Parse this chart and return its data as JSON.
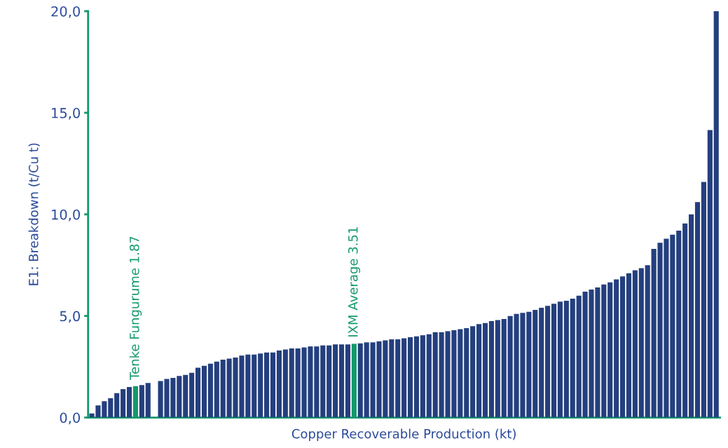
{
  "chart_data": {
    "type": "bar",
    "xlabel": "Copper Recoverable Production (kt)",
    "ylabel": "E1: Breakdown (t/Cu t)",
    "categories": [
      null,
      null,
      null,
      null,
      null,
      null,
      null,
      null,
      null,
      null,
      null,
      null,
      null,
      null,
      null,
      null,
      null,
      null,
      null,
      null,
      null,
      null,
      null,
      null,
      null,
      null,
      null,
      null,
      null,
      null,
      null,
      null,
      null,
      null,
      null,
      null,
      null,
      null,
      null,
      null,
      null,
      null,
      null,
      null,
      null,
      null,
      null,
      null,
      null,
      null,
      null,
      null,
      null,
      null,
      null,
      null,
      null,
      null,
      null,
      null,
      null,
      null,
      null,
      null,
      null,
      null,
      null,
      null,
      null,
      null,
      null,
      null,
      null,
      null,
      null,
      null,
      null,
      null,
      null,
      null,
      null,
      null,
      null,
      null,
      null,
      null,
      null,
      null,
      null,
      null,
      null,
      null,
      null,
      null,
      null,
      null,
      null,
      null,
      null,
      null,
      null
    ],
    "values": [
      0.2,
      0.6,
      0.8,
      0.95,
      1.2,
      1.4,
      1.5,
      1.55,
      1.6,
      1.7,
      null,
      1.8,
      1.9,
      1.95,
      2.05,
      2.1,
      2.2,
      2.45,
      2.55,
      2.65,
      2.75,
      2.85,
      2.9,
      2.95,
      3.05,
      3.1,
      3.1,
      3.15,
      3.2,
      3.2,
      3.3,
      3.35,
      3.4,
      3.4,
      3.45,
      3.5,
      3.5,
      3.55,
      3.55,
      3.6,
      3.6,
      3.6,
      3.63,
      3.65,
      3.7,
      3.7,
      3.75,
      3.8,
      3.85,
      3.85,
      3.9,
      3.95,
      4.0,
      4.05,
      4.1,
      4.2,
      4.2,
      4.25,
      4.3,
      4.35,
      4.4,
      4.5,
      4.6,
      4.65,
      4.75,
      4.8,
      4.85,
      5.0,
      5.1,
      5.15,
      5.2,
      5.3,
      5.4,
      5.5,
      5.6,
      5.7,
      5.75,
      5.85,
      6.0,
      6.2,
      6.3,
      6.4,
      6.55,
      6.65,
      6.8,
      6.95,
      7.1,
      7.25,
      7.35,
      7.5,
      8.3,
      8.6,
      8.8,
      9.0,
      9.2,
      9.55,
      10.0,
      10.6,
      11.6,
      14.15,
      20.0
    ],
    "color": "#243f7e",
    "colors": [
      "#243f7e",
      "#243f7e",
      "#243f7e",
      "#243f7e",
      "#243f7e",
      "#243f7e",
      "#243f7e",
      "#13996b",
      "#243f7e",
      "#243f7e",
      "#243f7e",
      "#243f7e",
      "#243f7e",
      "#243f7e",
      "#243f7e",
      "#243f7e",
      "#243f7e",
      "#243f7e",
      "#243f7e",
      "#243f7e",
      "#243f7e",
      "#243f7e",
      "#243f7e",
      "#243f7e",
      "#243f7e",
      "#243f7e",
      "#243f7e",
      "#243f7e",
      "#243f7e",
      "#243f7e",
      "#243f7e",
      "#243f7e",
      "#243f7e",
      "#243f7e",
      "#243f7e",
      "#243f7e",
      "#243f7e",
      "#243f7e",
      "#243f7e",
      "#243f7e",
      "#243f7e",
      "#243f7e",
      "#13996b",
      "#243f7e",
      "#243f7e",
      "#243f7e",
      "#243f7e",
      "#243f7e",
      "#243f7e",
      "#243f7e",
      "#243f7e",
      "#243f7e",
      "#243f7e",
      "#243f7e",
      "#243f7e",
      "#243f7e",
      "#243f7e",
      "#243f7e",
      "#243f7e",
      "#243f7e",
      "#243f7e",
      "#243f7e",
      "#243f7e",
      "#243f7e",
      "#243f7e",
      "#243f7e",
      "#243f7e",
      "#243f7e",
      "#243f7e",
      "#243f7e",
      "#243f7e",
      "#243f7e",
      "#243f7e",
      "#243f7e",
      "#243f7e",
      "#243f7e",
      "#243f7e",
      "#243f7e",
      "#243f7e",
      "#243f7e",
      "#243f7e",
      "#243f7e",
      "#243f7e",
      "#243f7e",
      "#243f7e",
      "#243f7e",
      "#243f7e",
      "#243f7e",
      "#243f7e",
      "#243f7e",
      "#243f7e",
      "#243f7e",
      "#243f7e",
      "#243f7e",
      "#243f7e",
      "#243f7e",
      "#243f7e",
      "#243f7e",
      "#243f7e",
      "#243f7e",
      "#243f7e"
    ],
    "annotations": [
      {
        "text": "Tenke Fungurume 1.87",
        "y": 1.55
      },
      {
        "text": "IXM Average 3.51",
        "y": 3.63
      }
    ],
    "ylim": [
      0,
      20
    ],
    "yticks": [
      {
        "value": 0,
        "label": "0,0"
      },
      {
        "value": 5,
        "label": "5,0"
      },
      {
        "value": 10,
        "label": "10,0"
      },
      {
        "value": 15,
        "label": "15,0"
      },
      {
        "value": 20,
        "label": "20,0"
      }
    ],
    "grid": false,
    "legend": false
  }
}
